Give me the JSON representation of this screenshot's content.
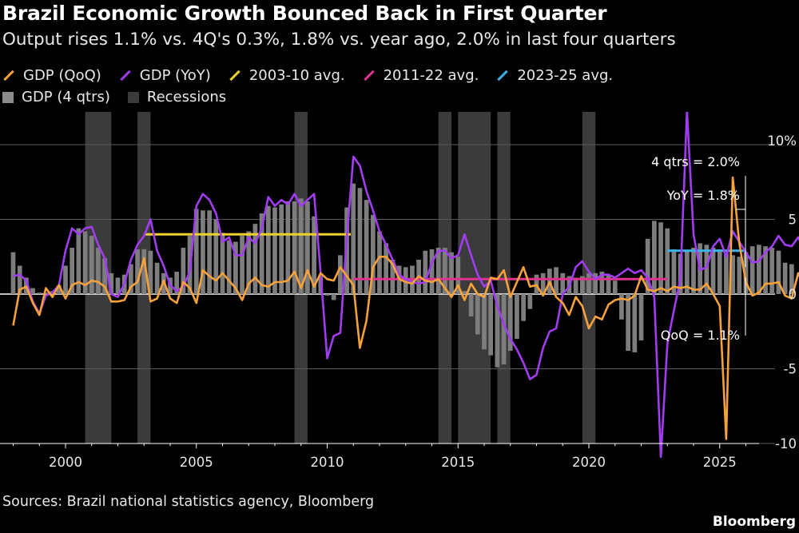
{
  "title": "Brazil Economic Growth Bounced Back in First Quarter",
  "subtitle": "Output rises 1.1% vs. 4Q's 0.3%, 1.8% vs. year ago, 2.0% in last four quarters",
  "legend": [
    {
      "label": "GDP (QoQ)",
      "color": "#f7a13b",
      "kind": "line"
    },
    {
      "label": "GDP (YoY)",
      "color": "#a23cf0",
      "kind": "line"
    },
    {
      "label": "2003-10 avg.",
      "color": "#f0d02a",
      "kind": "line"
    },
    {
      "label": "2011-22 avg.",
      "color": "#e0338f",
      "kind": "line"
    },
    {
      "label": "2023-25 avg.",
      "color": "#3ab3e8",
      "kind": "line"
    },
    {
      "label": "GDP (4 qtrs)",
      "color": "#8c8c8c",
      "kind": "box"
    },
    {
      "label": "Recessions",
      "color": "#3b3b3b",
      "kind": "box"
    }
  ],
  "source": "Sources: Brazil national statistics agency, Bloomberg",
  "brand": "Bloomberg",
  "chart_data": {
    "type": "line",
    "xlim": [
      1998.0,
      2026.5
    ],
    "ylim": [
      -10,
      11
    ],
    "x_ticks": [
      2000,
      2005,
      2010,
      2015,
      2020,
      2025
    ],
    "x_tick_labels": [
      "2000",
      "2005",
      "2010",
      "2015",
      "2020",
      "2025"
    ],
    "y_ticks": [
      10,
      5,
      0,
      -5,
      -10
    ],
    "y_tick_labels": [
      "10%",
      "5",
      "0",
      "-5",
      "-10"
    ],
    "grid": true,
    "quarter_start": 1998.0,
    "recessions": [
      [
        2000.75,
        2001.75
      ],
      [
        2002.75,
        2003.25
      ],
      [
        2008.75,
        2009.25
      ],
      [
        2014.25,
        2014.75
      ],
      [
        2015.0,
        2016.25
      ],
      [
        2016.5,
        2017.0
      ],
      [
        2019.75,
        2020.25
      ]
    ],
    "series": [
      {
        "name": "GDP (QoQ)",
        "color": "#f7a13b",
        "values": [
          -2.1,
          0.3,
          0.5,
          -0.6,
          -1.4,
          0.4,
          -0.2,
          0.6,
          -0.3,
          0.6,
          0.8,
          0.6,
          0.9,
          0.8,
          0.5,
          -0.5,
          -0.5,
          -0.4,
          0.5,
          0.8,
          2.4,
          -0.5,
          -0.3,
          0.9,
          -0.3,
          -0.6,
          0.8,
          0.4,
          -0.6,
          1.6,
          1.2,
          0.9,
          1.4,
          0.9,
          0.4,
          -0.4,
          0.7,
          1.1,
          0.6,
          0.5,
          0.8,
          0.8,
          0.9,
          1.5,
          0.4,
          1.6,
          0.5,
          1.4,
          1.0,
          0.9,
          1.8,
          1.2,
          0.6,
          -3.6,
          -1.8,
          1.8,
          2.5,
          2.5,
          2.0,
          1.0,
          0.8,
          0.7,
          1.2,
          0.9,
          0.8,
          1.0,
          0.4,
          -0.2,
          0.6,
          -0.4,
          0.7,
          0.0,
          -0.2,
          1.1,
          1.0,
          1.6,
          -0.2,
          0.8,
          1.8,
          0.5,
          0.6,
          -0.1,
          0.8,
          -0.2,
          -0.6,
          -1.4,
          -0.2,
          -0.8,
          -2.3,
          -1.5,
          -1.7,
          -0.7,
          -0.4,
          -0.3,
          -0.4,
          -0.1,
          1.2,
          0.3,
          0.2,
          0.4,
          0.2,
          0.5,
          0.4,
          0.5,
          0.3,
          0.3,
          0.7,
          0.0,
          -0.8,
          -9.7,
          7.8,
          3.4,
          0.8,
          -0.1,
          0.1,
          0.7,
          0.7,
          0.8,
          -0.1,
          -0.3,
          1.4,
          0.5,
          0.4,
          0.9,
          0.6,
          0.1,
          0.8,
          1.4,
          1.0,
          0.3,
          0.6,
          0.9,
          -0.2,
          0.3,
          1.1
        ]
      },
      {
        "name": "GDP (YoY)",
        "color": "#a23cf0",
        "values": [
          1.2,
          1.3,
          0.9,
          -0.5,
          -1.3,
          -0.1,
          0.1,
          0.6,
          2.9,
          4.4,
          4.0,
          4.4,
          4.5,
          3.3,
          2.4,
          0.0,
          -0.2,
          0.7,
          2.3,
          3.3,
          3.9,
          5.0,
          2.9,
          1.9,
          0.6,
          0.2,
          0.5,
          1.5,
          5.9,
          6.7,
          6.3,
          5.4,
          3.5,
          3.8,
          2.6,
          2.6,
          3.8,
          3.4,
          4.4,
          6.5,
          5.9,
          6.3,
          6.0,
          6.7,
          5.9,
          6.3,
          6.7,
          1.4,
          -4.3,
          -2.8,
          -2.6,
          3.8,
          9.2,
          8.6,
          6.9,
          5.6,
          4.2,
          3.3,
          2.3,
          1.3,
          1.0,
          0.8,
          0.7,
          0.8,
          2.1,
          2.9,
          2.9,
          2.4,
          2.6,
          4.0,
          2.6,
          1.3,
          0.5,
          0.9,
          -0.8,
          -2.0,
          -3.0,
          -3.7,
          -4.6,
          -5.7,
          -5.4,
          -3.6,
          -2.5,
          -2.3,
          0.0,
          0.5,
          1.8,
          2.2,
          1.5,
          1.0,
          1.3,
          1.3,
          1.1,
          1.4,
          1.7,
          1.4,
          1.6,
          1.1,
          -0.2,
          -10.9,
          -3.3,
          -1.1,
          1.0,
          12.3,
          4.0,
          1.6,
          1.8,
          3.2,
          3.7,
          2.5,
          4.2,
          3.5,
          2.8,
          2.1,
          2.2,
          2.8,
          3.2,
          3.9,
          3.3,
          3.2,
          3.8,
          2.9,
          2.2,
          1.8,
          1.8
        ]
      },
      {
        "name": "GDP (4 qtrs)",
        "color": "#7d7d7d",
        "values": [
          2.8,
          1.9,
          1.1,
          0.4,
          0.1,
          0.1,
          0.2,
          0.6,
          1.9,
          3.1,
          4.4,
          4.2,
          3.9,
          3.1,
          2.4,
          1.4,
          1.1,
          1.3,
          2.0,
          3.0,
          3.0,
          2.9,
          2.1,
          1.4,
          1.1,
          1.5,
          3.1,
          3.9,
          5.7,
          5.6,
          5.6,
          5.0,
          4.1,
          3.6,
          3.5,
          3.9,
          4.2,
          4.7,
          5.4,
          5.9,
          5.8,
          6.0,
          6.2,
          6.2,
          6.4,
          6.2,
          5.2,
          1.2,
          -0.1,
          -0.4,
          2.6,
          5.8,
          7.4,
          7.1,
          6.3,
          5.3,
          4.2,
          3.4,
          2.3,
          1.9,
          1.8,
          1.9,
          2.3,
          2.9,
          3.0,
          3.1,
          3.1,
          2.8,
          2.5,
          0.2,
          -1.5,
          -2.7,
          -3.7,
          -4.1,
          -4.9,
          -4.7,
          -3.8,
          -3.0,
          -1.8,
          -1.0,
          1.3,
          1.4,
          1.7,
          1.8,
          1.4,
          1.2,
          1.1,
          1.2,
          1.4,
          1.4,
          1.5,
          1.3,
          0.9,
          -1.7,
          -3.8,
          -3.9,
          -3.1,
          3.7,
          4.9,
          4.8,
          4.4,
          3.0,
          2.7,
          2.9,
          3.1,
          3.4,
          3.3,
          3.1,
          3.0,
          2.7,
          2.6,
          2.5,
          2.8,
          3.2,
          3.3,
          3.2,
          3.1,
          2.9,
          2.1,
          2.0
        ]
      }
    ],
    "averages": [
      {
        "name": "2003-10 avg.",
        "color": "#f0d02a",
        "value": 4.0,
        "x_range": [
          2003.0,
          2010.9
        ]
      },
      {
        "name": "2011-22 avg.",
        "color": "#e0338f",
        "value": 1.0,
        "x_range": [
          2011.0,
          2023.0
        ]
      },
      {
        "name": "2023-25 avg.",
        "color": "#3ab3e8",
        "value": 2.9,
        "x_range": [
          2023.0,
          2026.0
        ]
      }
    ],
    "annotations": [
      {
        "text": "4 qtrs = 2.0%",
        "series": "GDP (4 qtrs)"
      },
      {
        "text": "YoY = 1.8%",
        "series": "GDP (YoY)"
      },
      {
        "text": "QoQ = 1.1%",
        "series": "GDP (QoQ)"
      }
    ]
  }
}
